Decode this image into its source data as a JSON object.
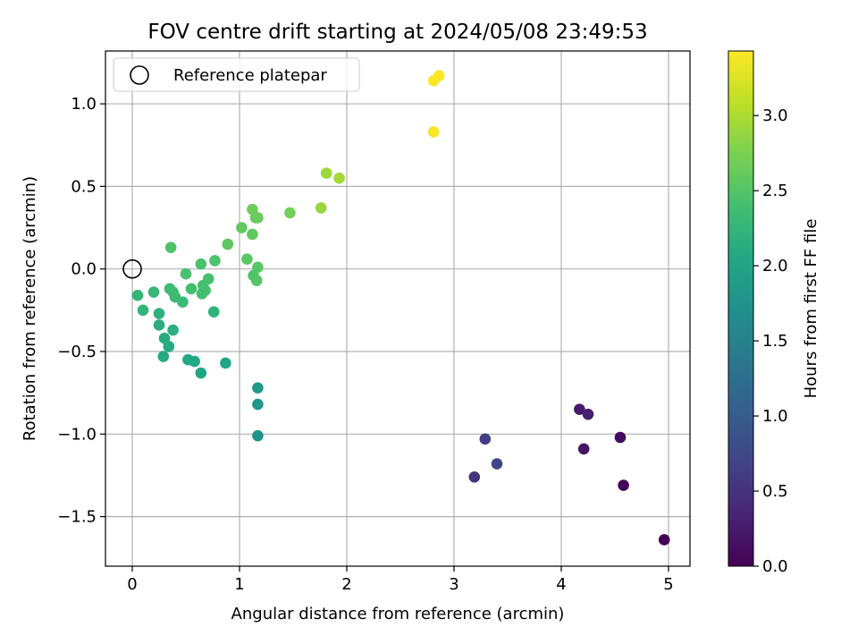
{
  "chart_data": {
    "type": "scatter",
    "title": "FOV centre drift starting at 2024/05/08 23:49:53",
    "xlabel": "Angular distance from reference (arcmin)",
    "ylabel": "Rotation from reference (arcmin)",
    "xlim": [
      -0.25,
      5.2
    ],
    "ylim": [
      -1.8,
      1.32
    ],
    "xticks": [
      0,
      1,
      2,
      3,
      4,
      5
    ],
    "xtick_labels": [
      "0",
      "1",
      "2",
      "3",
      "4",
      "5"
    ],
    "yticks": [
      -1.5,
      -1.0,
      -0.5,
      0.0,
      0.5,
      1.0
    ],
    "ytick_labels": [
      "−1.5",
      "−1.0",
      "−0.5",
      "0.0",
      "0.5",
      "1.0"
    ],
    "grid": true,
    "legend": {
      "position": "top-left",
      "entries": [
        "Reference platepar"
      ]
    },
    "colorbar": {
      "label": "Hours from first FF file",
      "range": [
        0,
        3.43
      ],
      "colormap": "viridis",
      "ticks": [
        0.0,
        0.5,
        1.0,
        1.5,
        2.0,
        2.5,
        3.0
      ],
      "tick_labels": [
        "0.0",
        "0.5",
        "1.0",
        "1.5",
        "2.0",
        "2.5",
        "3.0"
      ]
    },
    "reference_point": {
      "x": 0.0,
      "y": 0.0,
      "name": "Reference platepar"
    },
    "points": [
      {
        "x": 4.96,
        "y": -1.64,
        "c": 0.02
      },
      {
        "x": 4.58,
        "y": -1.31,
        "c": 0.06
      },
      {
        "x": 4.55,
        "y": -1.02,
        "c": 0.1
      },
      {
        "x": 4.21,
        "y": -1.09,
        "c": 0.18
      },
      {
        "x": 4.17,
        "y": -0.85,
        "c": 0.24
      },
      {
        "x": 4.25,
        "y": -0.88,
        "c": 0.3
      },
      {
        "x": 3.19,
        "y": -1.26,
        "c": 0.52
      },
      {
        "x": 3.29,
        "y": -1.03,
        "c": 0.62
      },
      {
        "x": 3.4,
        "y": -1.18,
        "c": 0.72
      },
      {
        "x": 1.17,
        "y": -1.01,
        "c": 1.75
      },
      {
        "x": 1.17,
        "y": -0.82,
        "c": 1.8
      },
      {
        "x": 1.17,
        "y": -0.72,
        "c": 1.85
      },
      {
        "x": 0.87,
        "y": -0.57,
        "c": 2.02
      },
      {
        "x": 0.64,
        "y": -0.63,
        "c": 2.04
      },
      {
        "x": 0.52,
        "y": -0.55,
        "c": 2.06
      },
      {
        "x": 0.58,
        "y": -0.56,
        "c": 2.06
      },
      {
        "x": 0.29,
        "y": -0.53,
        "c": 2.08
      },
      {
        "x": 0.34,
        "y": -0.47,
        "c": 2.1
      },
      {
        "x": 0.3,
        "y": -0.42,
        "c": 2.12
      },
      {
        "x": 0.25,
        "y": -0.34,
        "c": 2.14
      },
      {
        "x": 0.38,
        "y": -0.37,
        "c": 2.16
      },
      {
        "x": 0.25,
        "y": -0.27,
        "c": 2.18
      },
      {
        "x": 0.76,
        "y": -0.26,
        "c": 2.2
      },
      {
        "x": 0.1,
        "y": -0.25,
        "c": 2.22
      },
      {
        "x": 0.05,
        "y": -0.16,
        "c": 2.24
      },
      {
        "x": 0.2,
        "y": -0.14,
        "c": 2.26
      },
      {
        "x": 0.4,
        "y": -0.17,
        "c": 2.3
      },
      {
        "x": 0.47,
        "y": -0.2,
        "c": 2.32
      },
      {
        "x": 0.35,
        "y": -0.12,
        "c": 2.34
      },
      {
        "x": 0.38,
        "y": -0.14,
        "c": 2.36
      },
      {
        "x": 0.55,
        "y": -0.12,
        "c": 2.38
      },
      {
        "x": 0.65,
        "y": -0.15,
        "c": 2.4
      },
      {
        "x": 0.68,
        "y": -0.13,
        "c": 2.4
      },
      {
        "x": 0.66,
        "y": -0.1,
        "c": 2.41
      },
      {
        "x": 0.71,
        "y": -0.06,
        "c": 2.42
      },
      {
        "x": 0.5,
        "y": -0.03,
        "c": 2.43
      },
      {
        "x": 0.64,
        "y": 0.03,
        "c": 2.44
      },
      {
        "x": 0.77,
        "y": 0.05,
        "c": 2.45
      },
      {
        "x": 0.36,
        "y": 0.13,
        "c": 2.46
      },
      {
        "x": 1.13,
        "y": -0.04,
        "c": 2.48
      },
      {
        "x": 1.16,
        "y": -0.07,
        "c": 2.5
      },
      {
        "x": 1.17,
        "y": 0.01,
        "c": 2.52
      },
      {
        "x": 1.07,
        "y": 0.06,
        "c": 2.54
      },
      {
        "x": 0.89,
        "y": 0.15,
        "c": 2.56
      },
      {
        "x": 1.12,
        "y": 0.21,
        "c": 2.58
      },
      {
        "x": 1.02,
        "y": 0.25,
        "c": 2.6
      },
      {
        "x": 1.15,
        "y": 0.31,
        "c": 2.62
      },
      {
        "x": 1.17,
        "y": 0.31,
        "c": 2.64
      },
      {
        "x": 1.12,
        "y": 0.36,
        "c": 2.66
      },
      {
        "x": 1.47,
        "y": 0.34,
        "c": 2.7
      },
      {
        "x": 1.76,
        "y": 0.37,
        "c": 2.9
      },
      {
        "x": 1.81,
        "y": 0.58,
        "c": 2.92
      },
      {
        "x": 1.93,
        "y": 0.55,
        "c": 2.95
      },
      {
        "x": 2.81,
        "y": 0.83,
        "c": 3.4
      },
      {
        "x": 2.81,
        "y": 1.14,
        "c": 3.42
      },
      {
        "x": 2.86,
        "y": 1.17,
        "c": 3.43
      }
    ]
  }
}
